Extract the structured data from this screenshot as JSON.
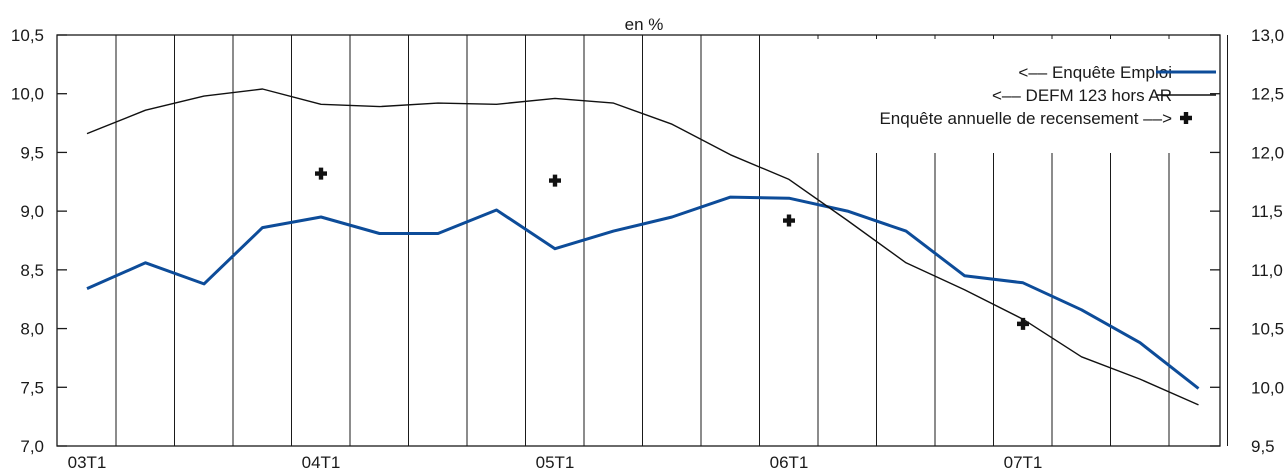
{
  "chart_data": {
    "type": "line",
    "title": "en %",
    "x_tick_labels": [
      "03T1",
      "04T1",
      "05T1",
      "06T1",
      "07T1"
    ],
    "left_axis": {
      "ylim": [
        7.0,
        10.5
      ],
      "ticks": [
        "7,0",
        "7,5",
        "8,0",
        "8,5",
        "9,0",
        "9,5",
        "10,0",
        "10,5"
      ]
    },
    "right_axis": {
      "ylim": [
        9.5,
        13.0
      ],
      "ticks": [
        "9,5",
        "10,0",
        "10,5",
        "11,0",
        "11,5",
        "12,0",
        "12,5",
        "13,0"
      ]
    },
    "x": [
      0,
      0.25,
      0.5,
      0.75,
      1,
      1.25,
      1.5,
      1.75,
      2,
      2.25,
      2.5,
      2.75,
      3,
      3.25,
      3.5,
      3.75,
      4,
      4.25,
      4.5,
      4.75
    ],
    "series": [
      {
        "name": "<–– Enquête Emploi",
        "axis": "left",
        "color": "#0d4c99",
        "style": "thick-line",
        "x": [
          0,
          0.25,
          0.5,
          0.75,
          1,
          1.25,
          1.5,
          1.75,
          2,
          2.25,
          2.5,
          2.75,
          3,
          3.25,
          3.5,
          3.75,
          4,
          4.25,
          4.5,
          4.75
        ],
        "values": [
          8.34,
          8.56,
          8.38,
          8.86,
          8.95,
          8.81,
          8.81,
          9.01,
          8.68,
          8.83,
          8.95,
          9.12,
          9.11,
          9.0,
          8.83,
          8.45,
          8.39,
          8.16,
          7.88,
          7.49
        ]
      },
      {
        "name": "<–– DEFM 123 hors AR",
        "axis": "left",
        "color": "#111111",
        "style": "thin-line",
        "x": [
          0,
          0.25,
          0.5,
          0.75,
          1,
          1.25,
          1.5,
          1.75,
          2,
          2.25,
          2.5,
          2.75,
          3,
          3.25,
          3.5,
          3.75,
          4,
          4.25,
          4.5,
          4.75
        ],
        "values": [
          9.66,
          9.86,
          9.98,
          10.04,
          9.91,
          9.89,
          9.92,
          9.91,
          9.96,
          9.92,
          9.74,
          9.48,
          9.27,
          8.92,
          8.56,
          8.33,
          8.08,
          7.76,
          7.57,
          7.35
        ]
      },
      {
        "name": "Enquête annuelle de recensement ––>",
        "axis": "right",
        "color": "#111111",
        "style": "cross-markers",
        "x": [
          1,
          2,
          3,
          4
        ],
        "values": [
          11.82,
          11.76,
          11.42,
          10.54
        ]
      }
    ],
    "legend_position": "top-right",
    "grid": "vertical"
  }
}
